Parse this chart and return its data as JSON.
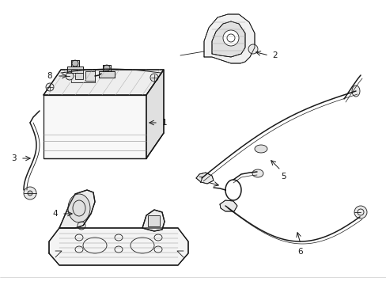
{
  "bg_color": "#ffffff",
  "line_color": "#1a1a1a",
  "label_color": "#000000",
  "fig_width": 4.89,
  "fig_height": 3.6,
  "dpi": 100,
  "label_fontsize": 7.5,
  "lw_main": 0.9,
  "lw_thin": 0.6,
  "lw_cable": 1.1
}
